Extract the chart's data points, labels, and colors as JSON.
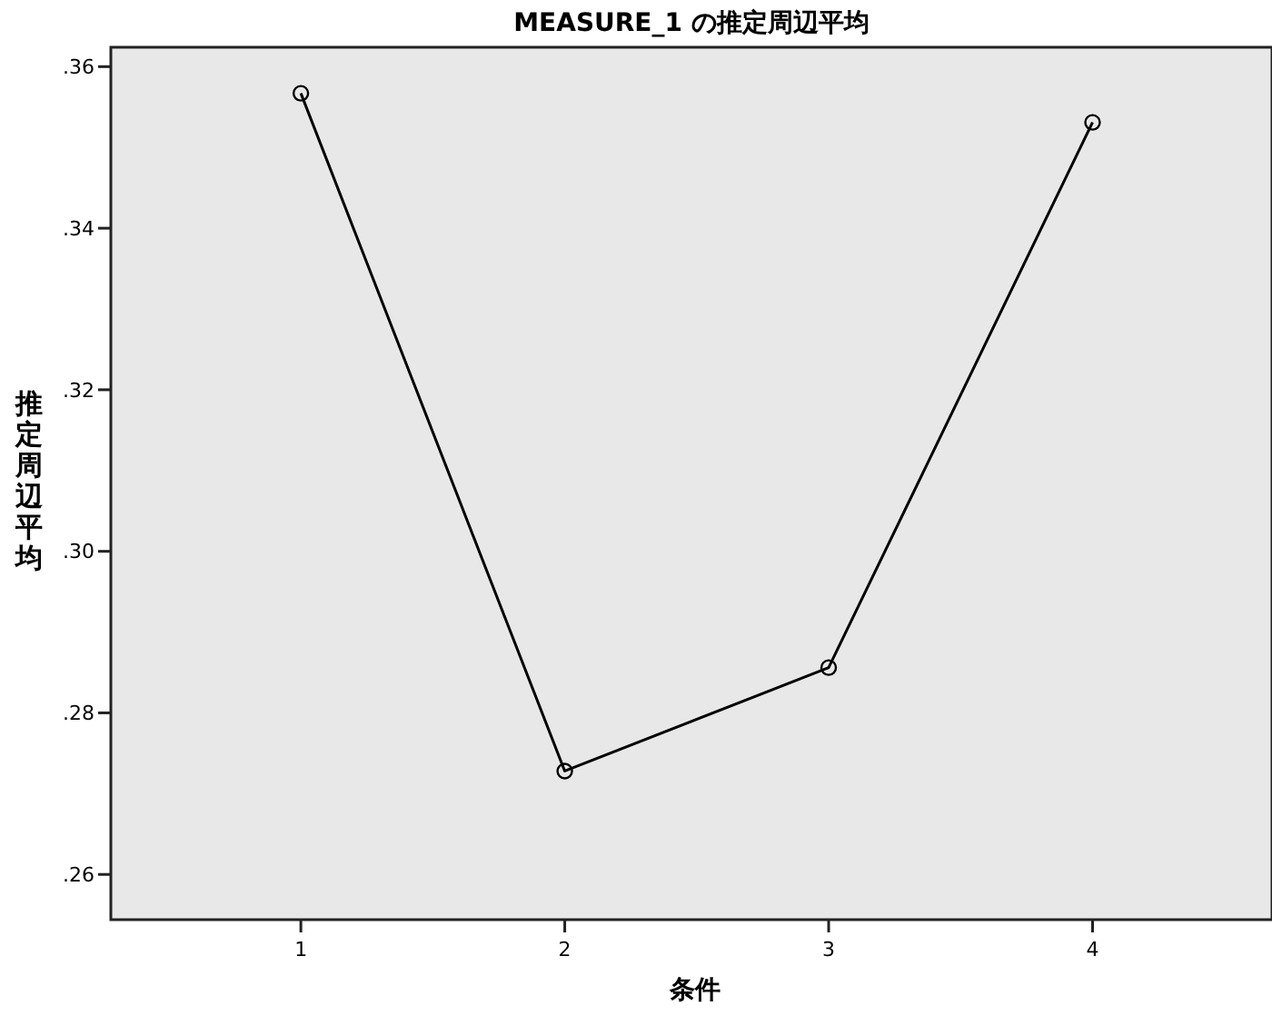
{
  "chart_data": {
    "type": "line",
    "title": "MEASURE_1 の推定周辺平均",
    "xlabel": "条件",
    "ylabel": "推定周辺平均",
    "x": [
      1,
      2,
      3,
      4
    ],
    "series": [
      {
        "color": "#000000",
        "values": [
          0.3567,
          0.2728,
          0.2856,
          0.3531
        ]
      }
    ],
    "xlim": [
      0.28,
      4.68
    ],
    "xticks": [
      1,
      2,
      3,
      4
    ],
    "ylim": [
      0.2544,
      0.3624
    ],
    "yticks": [
      {
        "value": 0.26,
        "label": ".26"
      },
      {
        "value": 0.28,
        "label": ".28"
      },
      {
        "value": 0.3,
        "label": ".30"
      },
      {
        "value": 0.32,
        "label": ".32"
      },
      {
        "value": 0.34,
        "label": ".34"
      },
      {
        "value": 0.36,
        "label": ".36"
      }
    ],
    "grid": false,
    "marker": "circle",
    "line_style": "solid"
  }
}
